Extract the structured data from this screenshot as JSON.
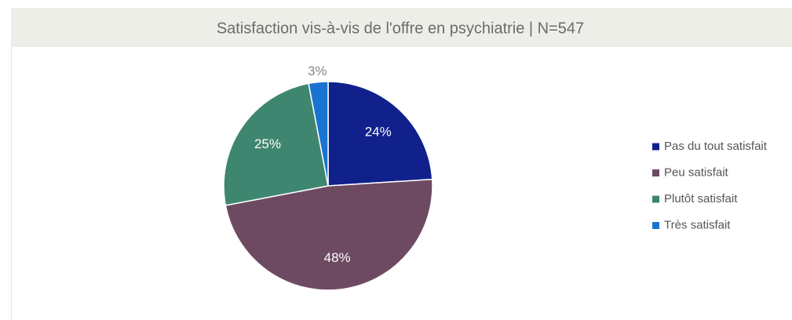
{
  "chart_data": {
    "type": "pie",
    "title": "Satisfaction vis-à-vis de l'offre en psychiatrie | N=547",
    "categories": [
      "Pas du tout satisfait",
      "Peu satisfait",
      "Plutôt satisfait",
      "Très satisfait"
    ],
    "values": [
      24,
      48,
      25,
      3
    ],
    "value_labels": [
      "24%",
      "48%",
      "25%",
      "3%"
    ],
    "colors": [
      "#10218b",
      "#6e4a62",
      "#3e8670",
      "#1a73d0"
    ],
    "legend": "right"
  }
}
